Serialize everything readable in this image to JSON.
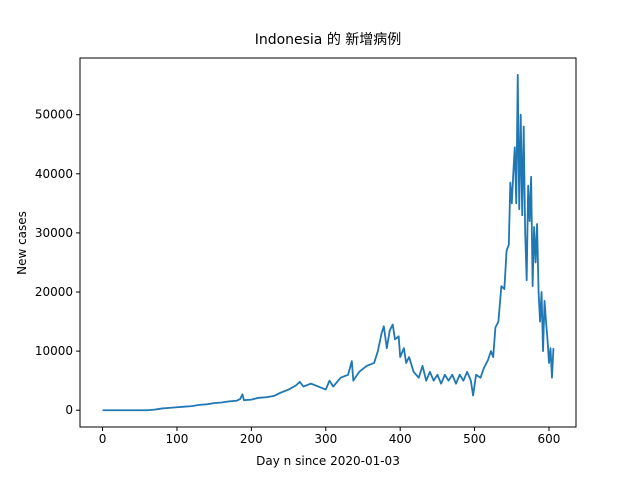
{
  "chart_data": {
    "type": "line",
    "title": "Indonesia 的 新增病例",
    "xlabel": "Day n since 2020-01-03",
    "ylabel": "New cases",
    "xlim": [
      -30.3,
      636.3
    ],
    "ylim": [
      -2838,
      59595
    ],
    "xticks": [
      0,
      100,
      200,
      300,
      400,
      500,
      600
    ],
    "yticks": [
      0,
      10000,
      20000,
      30000,
      40000,
      50000
    ],
    "series": [
      {
        "name": "New cases",
        "color": "#1f77b4",
        "x": [
          0,
          60,
          70,
          80,
          90,
          100,
          110,
          120,
          130,
          140,
          150,
          160,
          170,
          180,
          185,
          188,
          190,
          200,
          210,
          220,
          230,
          240,
          250,
          260,
          265,
          270,
          280,
          290,
          300,
          305,
          310,
          320,
          330,
          335,
          337,
          345,
          355,
          365,
          370,
          375,
          378,
          382,
          386,
          390,
          393,
          398,
          400,
          405,
          408,
          412,
          418,
          425,
          430,
          435,
          440,
          445,
          450,
          455,
          460,
          465,
          470,
          475,
          480,
          485,
          490,
          495,
          498,
          502,
          508,
          512,
          518,
          522,
          525,
          528,
          532,
          536,
          540,
          543,
          546,
          548,
          550,
          552,
          554,
          556,
          558,
          560,
          562,
          564,
          566,
          568,
          570,
          572,
          574,
          576,
          578,
          580,
          582,
          584,
          586,
          588,
          590,
          592,
          594,
          596,
          598,
          600,
          602,
          604,
          606
        ],
        "values": [
          0,
          0,
          100,
          300,
          400,
          500,
          600,
          700,
          900,
          1000,
          1200,
          1300,
          1500,
          1600,
          1900,
          2700,
          1700,
          1800,
          2100,
          2200,
          2400,
          3000,
          3500,
          4200,
          4800,
          4000,
          4500,
          4000,
          3500,
          5000,
          4000,
          5500,
          6000,
          8300,
          5000,
          6500,
          7500,
          8000,
          10000,
          13000,
          14200,
          10500,
          13500,
          14500,
          12000,
          12500,
          9000,
          10500,
          8000,
          9000,
          6500,
          5500,
          7500,
          5000,
          6500,
          5000,
          6000,
          4500,
          6000,
          5000,
          6000,
          4500,
          6000,
          5000,
          6500,
          5000,
          2500,
          6000,
          5500,
          7000,
          8500,
          10000,
          9000,
          14000,
          15000,
          21000,
          20500,
          27000,
          28000,
          38500,
          35000,
          40000,
          44500,
          35000,
          56757,
          34000,
          50000,
          33000,
          48000,
          30000,
          22000,
          38000,
          32000,
          39500,
          21000,
          31000,
          25000,
          31500,
          20000,
          15000,
          20000,
          10000,
          18500,
          15000,
          12000,
          8000,
          10500,
          5500,
          10500
        ]
      }
    ]
  }
}
